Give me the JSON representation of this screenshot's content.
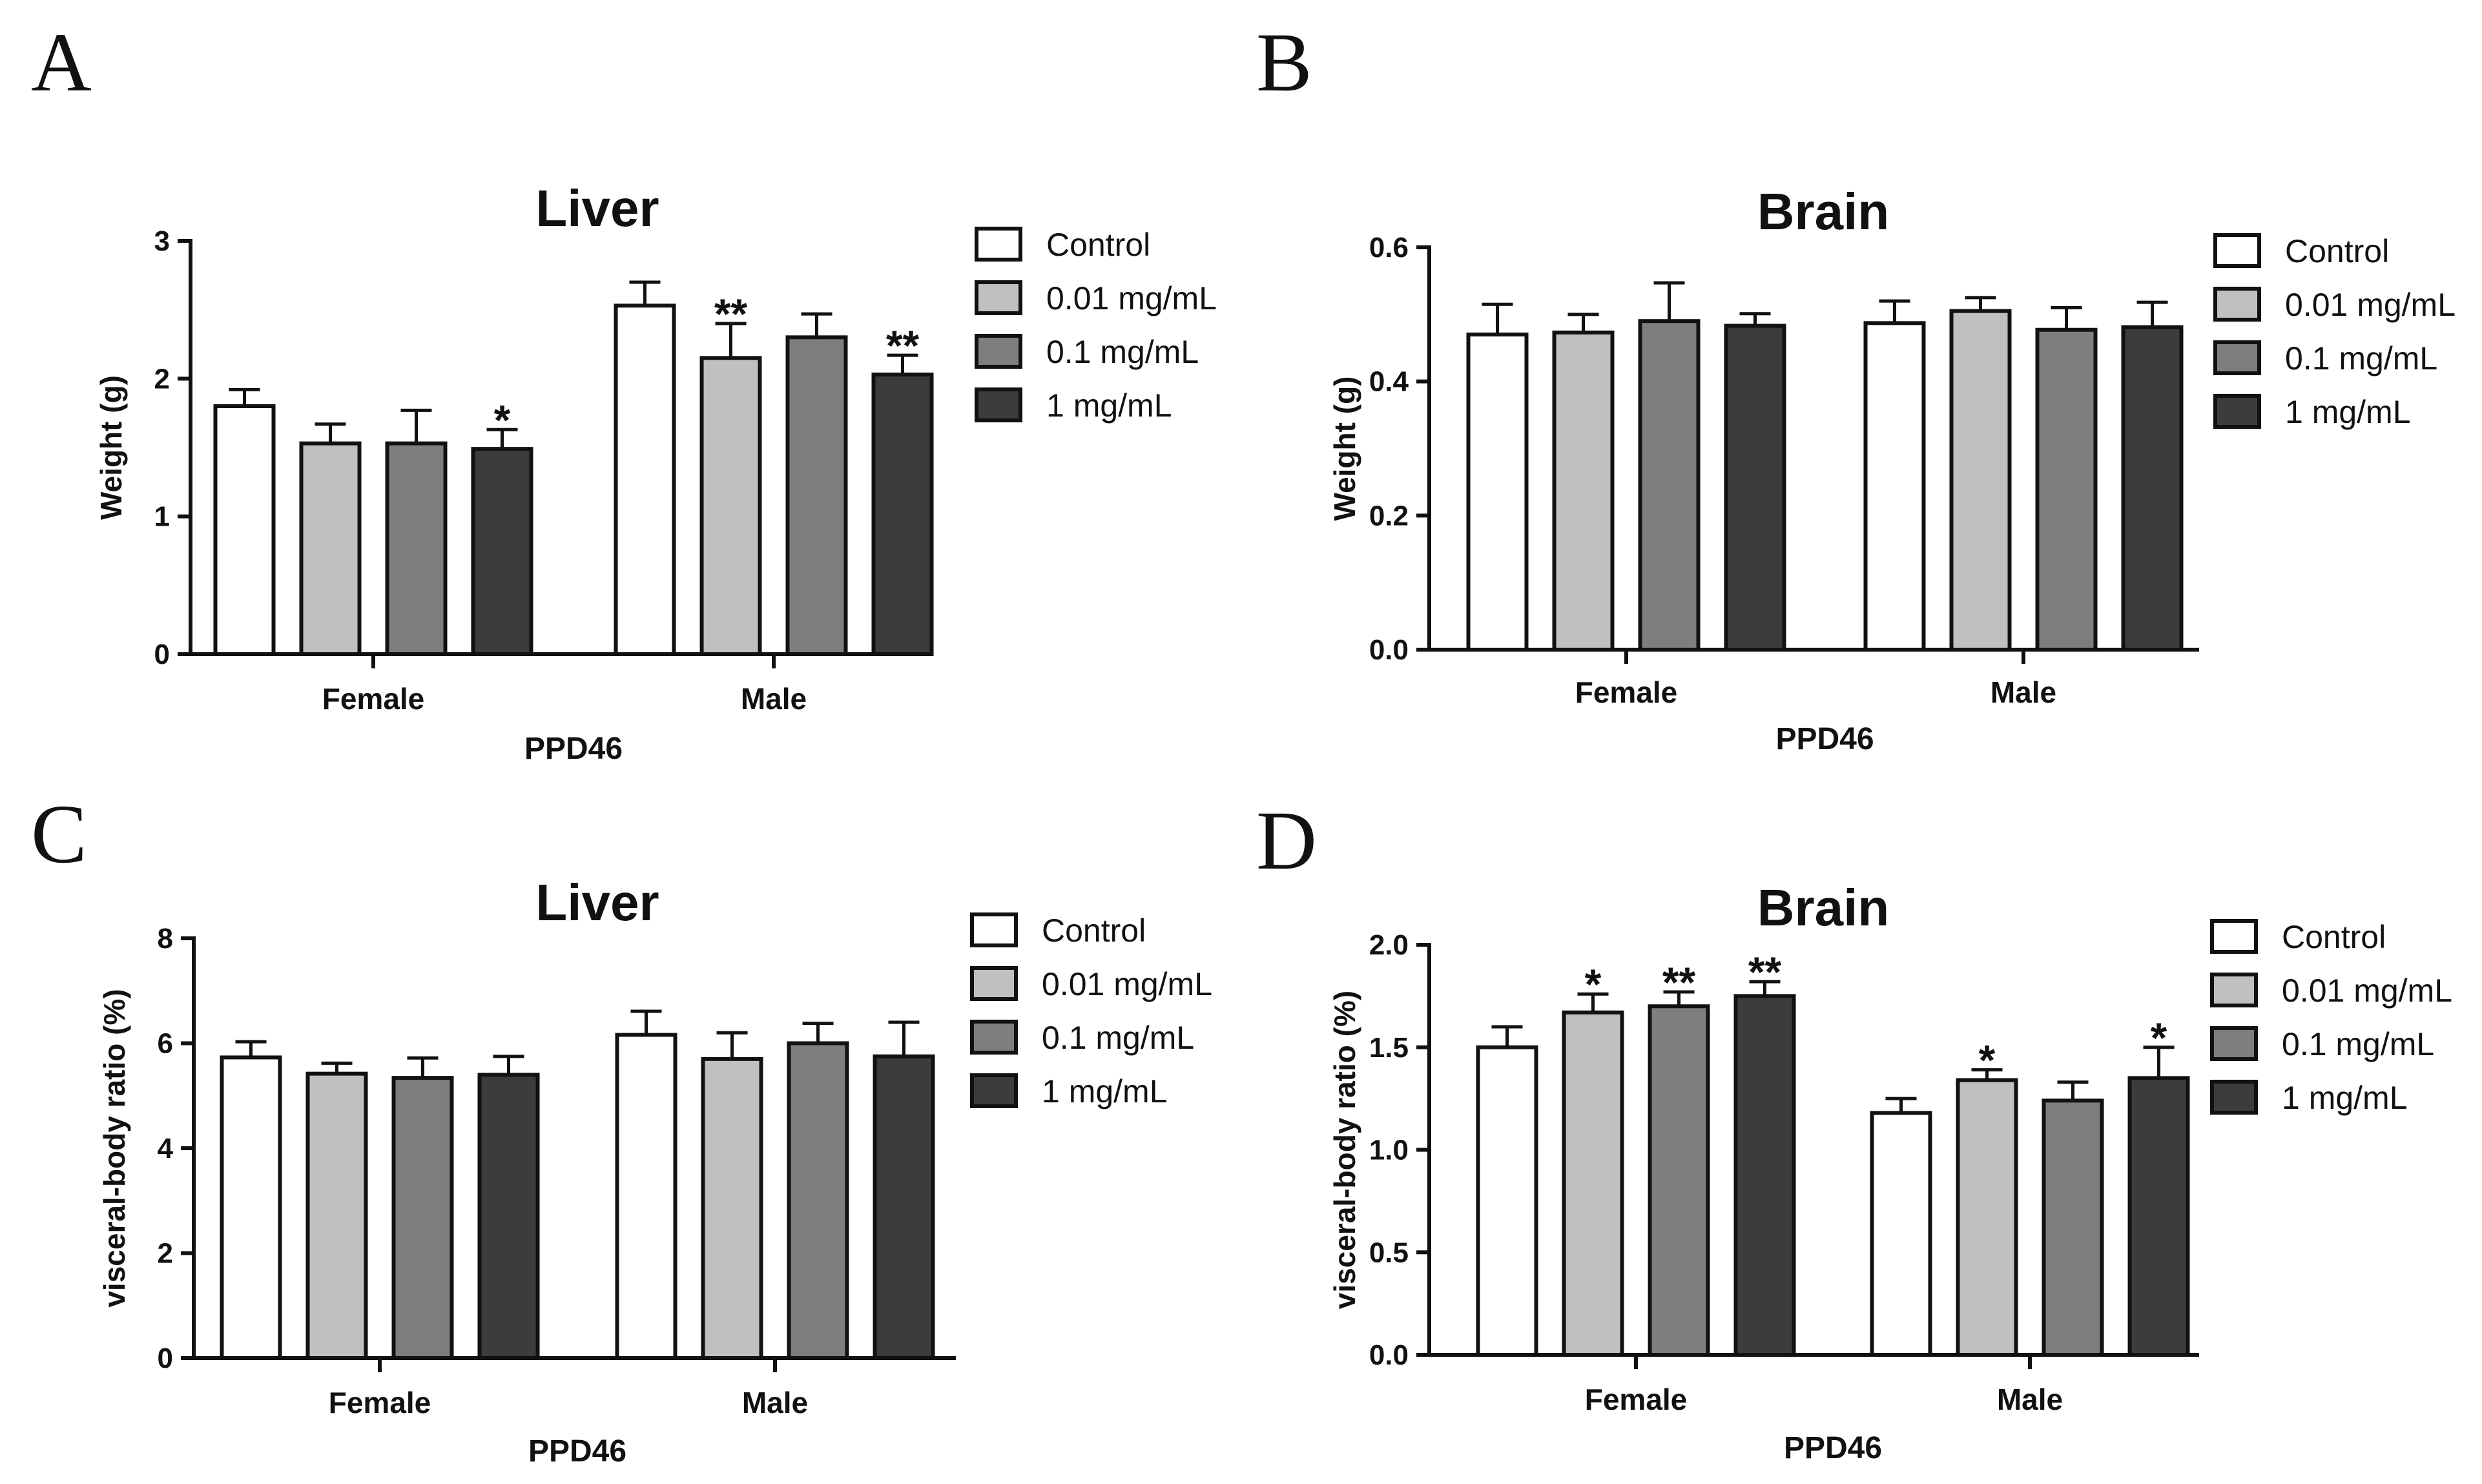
{
  "chart_data": [
    {
      "panel_label": "A",
      "type": "bar",
      "title": "Liver",
      "ylabel": "Weight (g)",
      "xlabel": "PPD46",
      "ylim": [
        0,
        3
      ],
      "yticks": [
        "0",
        "1",
        "2",
        "3"
      ],
      "categories": [
        "Female",
        "Male"
      ],
      "legend_position": "right",
      "series": [
        {
          "name": "Control",
          "color": "#ffffff",
          "values": [
            1.8,
            2.53
          ],
          "errors": [
            0.12,
            0.17
          ],
          "significance": [
            "",
            ""
          ]
        },
        {
          "name": "0.01 mg/mL",
          "color": "#c0c0c0",
          "values": [
            1.53,
            2.15
          ],
          "errors": [
            0.14,
            0.25
          ],
          "significance": [
            "",
            "**"
          ]
        },
        {
          "name": "0.1 mg/mL",
          "color": "#7e7e7e",
          "values": [
            1.53,
            2.3
          ],
          "errors": [
            0.24,
            0.17
          ],
          "significance": [
            "",
            ""
          ]
        },
        {
          "name": "1 mg/mL",
          "color": "#3c3c3c",
          "values": [
            1.49,
            2.03
          ],
          "errors": [
            0.14,
            0.14
          ],
          "significance": [
            "*",
            "**"
          ]
        }
      ]
    },
    {
      "panel_label": "B",
      "type": "bar",
      "title": "Brain",
      "ylabel": "Weight (g)",
      "xlabel": "PPD46",
      "ylim": [
        0,
        0.6
      ],
      "yticks": [
        "0.0",
        "0.2",
        "0.4",
        "0.6"
      ],
      "categories": [
        "Female",
        "Male"
      ],
      "legend_position": "right",
      "series": [
        {
          "name": "Control",
          "color": "#ffffff",
          "values": [
            0.47,
            0.487
          ],
          "errors": [
            0.045,
            0.033
          ],
          "significance": [
            "",
            ""
          ]
        },
        {
          "name": "0.01 mg/mL",
          "color": "#c0c0c0",
          "values": [
            0.473,
            0.505
          ],
          "errors": [
            0.027,
            0.02
          ],
          "significance": [
            "",
            ""
          ]
        },
        {
          "name": "0.1 mg/mL",
          "color": "#7e7e7e",
          "values": [
            0.49,
            0.477
          ],
          "errors": [
            0.057,
            0.033
          ],
          "significance": [
            "",
            ""
          ]
        },
        {
          "name": "1 mg/mL",
          "color": "#3c3c3c",
          "values": [
            0.483,
            0.481
          ],
          "errors": [
            0.018,
            0.037
          ],
          "significance": [
            "",
            ""
          ]
        }
      ]
    },
    {
      "panel_label": "C",
      "type": "bar",
      "title": "Liver",
      "ylabel": "visceral-body ratio (%)",
      "xlabel": "PPD46",
      "ylim": [
        0,
        8
      ],
      "yticks": [
        "0",
        "2",
        "4",
        "6",
        "8"
      ],
      "categories": [
        "Female",
        "Male"
      ],
      "legend_position": "right",
      "series": [
        {
          "name": "Control",
          "color": "#ffffff",
          "values": [
            5.73,
            6.16
          ],
          "errors": [
            0.3,
            0.45
          ],
          "significance": [
            "",
            ""
          ]
        },
        {
          "name": "0.01 mg/mL",
          "color": "#c0c0c0",
          "values": [
            5.42,
            5.7
          ],
          "errors": [
            0.2,
            0.5
          ],
          "significance": [
            "",
            ""
          ]
        },
        {
          "name": "0.1 mg/mL",
          "color": "#7e7e7e",
          "values": [
            5.34,
            6.0
          ],
          "errors": [
            0.38,
            0.38
          ],
          "significance": [
            "",
            ""
          ]
        },
        {
          "name": "1 mg/mL",
          "color": "#3c3c3c",
          "values": [
            5.4,
            5.75
          ],
          "errors": [
            0.35,
            0.65
          ],
          "significance": [
            "",
            ""
          ]
        }
      ]
    },
    {
      "panel_label": "D",
      "type": "bar",
      "title": "Brain",
      "ylabel": "visceral-body ratio (%)",
      "xlabel": "PPD46",
      "ylim": [
        0,
        2.0
      ],
      "yticks": [
        "0.0",
        "0.5",
        "1.0",
        "1.5",
        "2.0"
      ],
      "categories": [
        "Female",
        "Male"
      ],
      "legend_position": "right",
      "series": [
        {
          "name": "Control",
          "color": "#ffffff",
          "values": [
            1.5,
            1.18
          ],
          "errors": [
            0.1,
            0.07
          ],
          "significance": [
            "",
            ""
          ]
        },
        {
          "name": "0.01 mg/mL",
          "color": "#c0c0c0",
          "values": [
            1.67,
            1.34
          ],
          "errors": [
            0.09,
            0.05
          ],
          "significance": [
            "*",
            "*"
          ]
        },
        {
          "name": "0.1 mg/mL",
          "color": "#7e7e7e",
          "values": [
            1.7,
            1.24
          ],
          "errors": [
            0.07,
            0.09
          ],
          "significance": [
            "**",
            ""
          ]
        },
        {
          "name": "1 mg/mL",
          "color": "#3c3c3c",
          "values": [
            1.75,
            1.35
          ],
          "errors": [
            0.07,
            0.15
          ],
          "significance": [
            "**",
            "*"
          ]
        }
      ]
    }
  ]
}
